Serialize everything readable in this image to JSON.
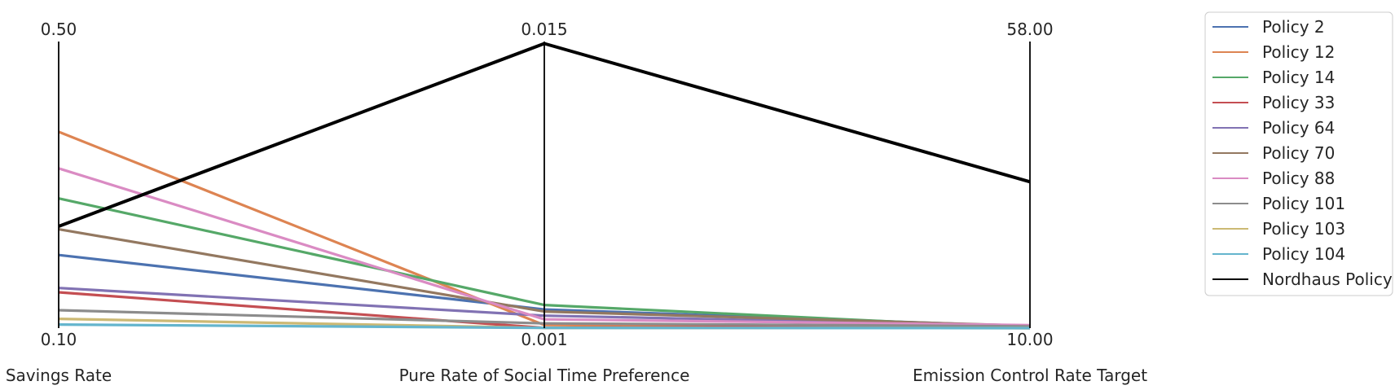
{
  "chart_data": {
    "type": "parallel_coordinates",
    "axes": [
      {
        "name": "Savings Rate",
        "min": 0.1,
        "max": 0.5,
        "min_label": "0.10",
        "max_label": "0.50"
      },
      {
        "name": "Pure Rate of Social Time Preference",
        "min": 0.001,
        "max": 0.015,
        "min_label": "0.001",
        "max_label": "0.015"
      },
      {
        "name": "Emission Control Rate Target",
        "min": 10.0,
        "max": 58.0,
        "min_label": "10.00",
        "max_label": "58.00"
      }
    ],
    "series": [
      {
        "name": "Policy 2",
        "color": "#4c72b0",
        "values": [
          0.202,
          0.00191,
          10.3
        ]
      },
      {
        "name": "Policy 12",
        "color": "#dd8452",
        "values": [
          0.374,
          0.00115,
          10.0
        ]
      },
      {
        "name": "Policy 14",
        "color": "#55a868",
        "values": [
          0.281,
          0.00213,
          10.0
        ]
      },
      {
        "name": "Policy 33",
        "color": "#c44e52",
        "values": [
          0.15,
          0.00101,
          10.4
        ]
      },
      {
        "name": "Policy 64",
        "color": "#8172b3",
        "values": [
          0.156,
          0.00161,
          10.4
        ]
      },
      {
        "name": "Policy 70",
        "color": "#937860",
        "values": [
          0.238,
          0.00181,
          10.4
        ]
      },
      {
        "name": "Policy 88",
        "color": "#da8bc3",
        "values": [
          0.323,
          0.00143,
          10.5
        ]
      },
      {
        "name": "Policy 101",
        "color": "#8c8c8c",
        "values": [
          0.125,
          0.00123,
          10.3
        ]
      },
      {
        "name": "Policy 103",
        "color": "#ccb974",
        "values": [
          0.113,
          0.00101,
          10.0
        ]
      },
      {
        "name": "Policy 104",
        "color": "#64b5cd",
        "values": [
          0.105,
          0.00101,
          10.0
        ]
      },
      {
        "name": "Nordhaus Policy",
        "color": "#000000",
        "values": [
          0.242,
          0.0149,
          34.5
        ]
      }
    ],
    "legend_position": "top-right",
    "grid": false
  }
}
